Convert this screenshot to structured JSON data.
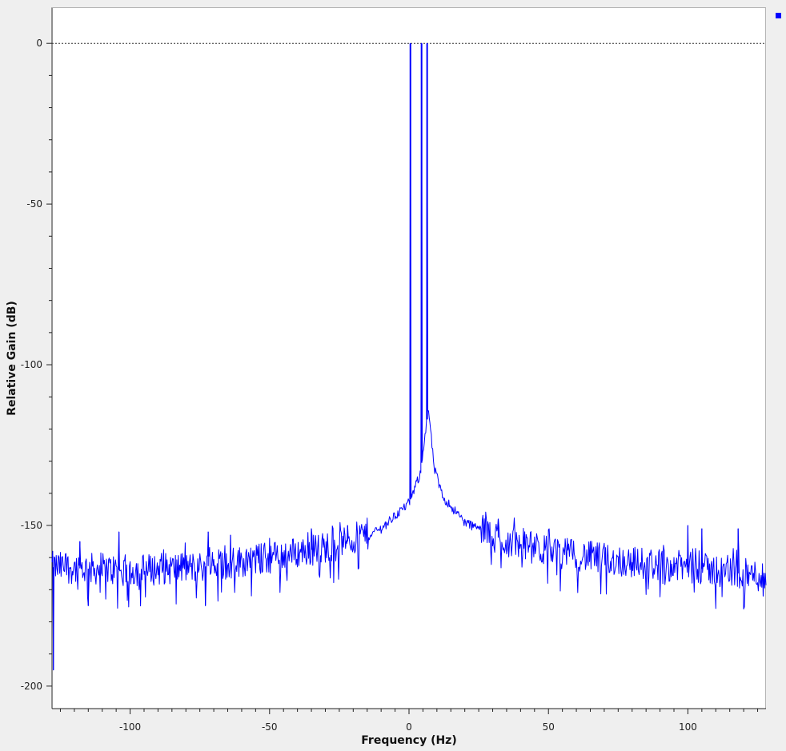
{
  "chart_data": {
    "type": "line",
    "title": "",
    "xlabel": "Frequency (Hz)",
    "ylabel": "Relative Gain (dB)",
    "xlim": [
      -128,
      128
    ],
    "ylim": [
      -207,
      11
    ],
    "x_ticks": [
      -100,
      -50,
      0,
      50,
      100
    ],
    "x_tick_labels": [
      "-100",
      "-50",
      "0",
      "50",
      "100"
    ],
    "y_ticks": [
      0,
      -50,
      -100,
      -150,
      -200
    ],
    "y_tick_labels": [
      "0",
      "-50",
      "-100",
      "-150",
      "-200"
    ],
    "reference_line_db": 0,
    "grid": false,
    "legend": "top-right",
    "series": [
      {
        "color": "#0000ff",
        "noise_floor_points": [
          [
            -128,
            -163
          ],
          [
            -100,
            -164
          ],
          [
            -75,
            -163
          ],
          [
            -50,
            -160
          ],
          [
            -25,
            -156
          ],
          [
            -10,
            -151
          ],
          [
            0,
            -143
          ],
          [
            4,
            -134
          ],
          [
            6,
            -120
          ],
          [
            7,
            -114
          ],
          [
            9,
            -132
          ],
          [
            12,
            -141
          ],
          [
            20,
            -149
          ],
          [
            35,
            -155
          ],
          [
            50,
            -158
          ],
          [
            75,
            -161
          ],
          [
            100,
            -163
          ],
          [
            128,
            -166
          ]
        ],
        "spikes": [
          {
            "x": 0.5,
            "y": 0
          },
          {
            "x": 4.5,
            "y": 0
          },
          {
            "x": 6.5,
            "y": 0
          },
          {
            "x": -127.5,
            "y": -195
          },
          {
            "x": -115,
            "y": -175
          },
          {
            "x": -73,
            "y": -175
          },
          {
            "x": -118,
            "y": -155
          },
          {
            "x": -104,
            "y": -152
          },
          {
            "x": -72,
            "y": -152
          },
          {
            "x": -64,
            "y": -153
          },
          {
            "x": -35,
            "y": -151
          },
          {
            "x": -22,
            "y": -150
          },
          {
            "x": -13,
            "y": -152
          },
          {
            "x": 32,
            "y": -148
          },
          {
            "x": 100,
            "y": -150
          },
          {
            "x": 105,
            "y": -151
          },
          {
            "x": 118,
            "y": -151
          },
          {
            "x": 127,
            "y": -172
          }
        ]
      }
    ]
  }
}
